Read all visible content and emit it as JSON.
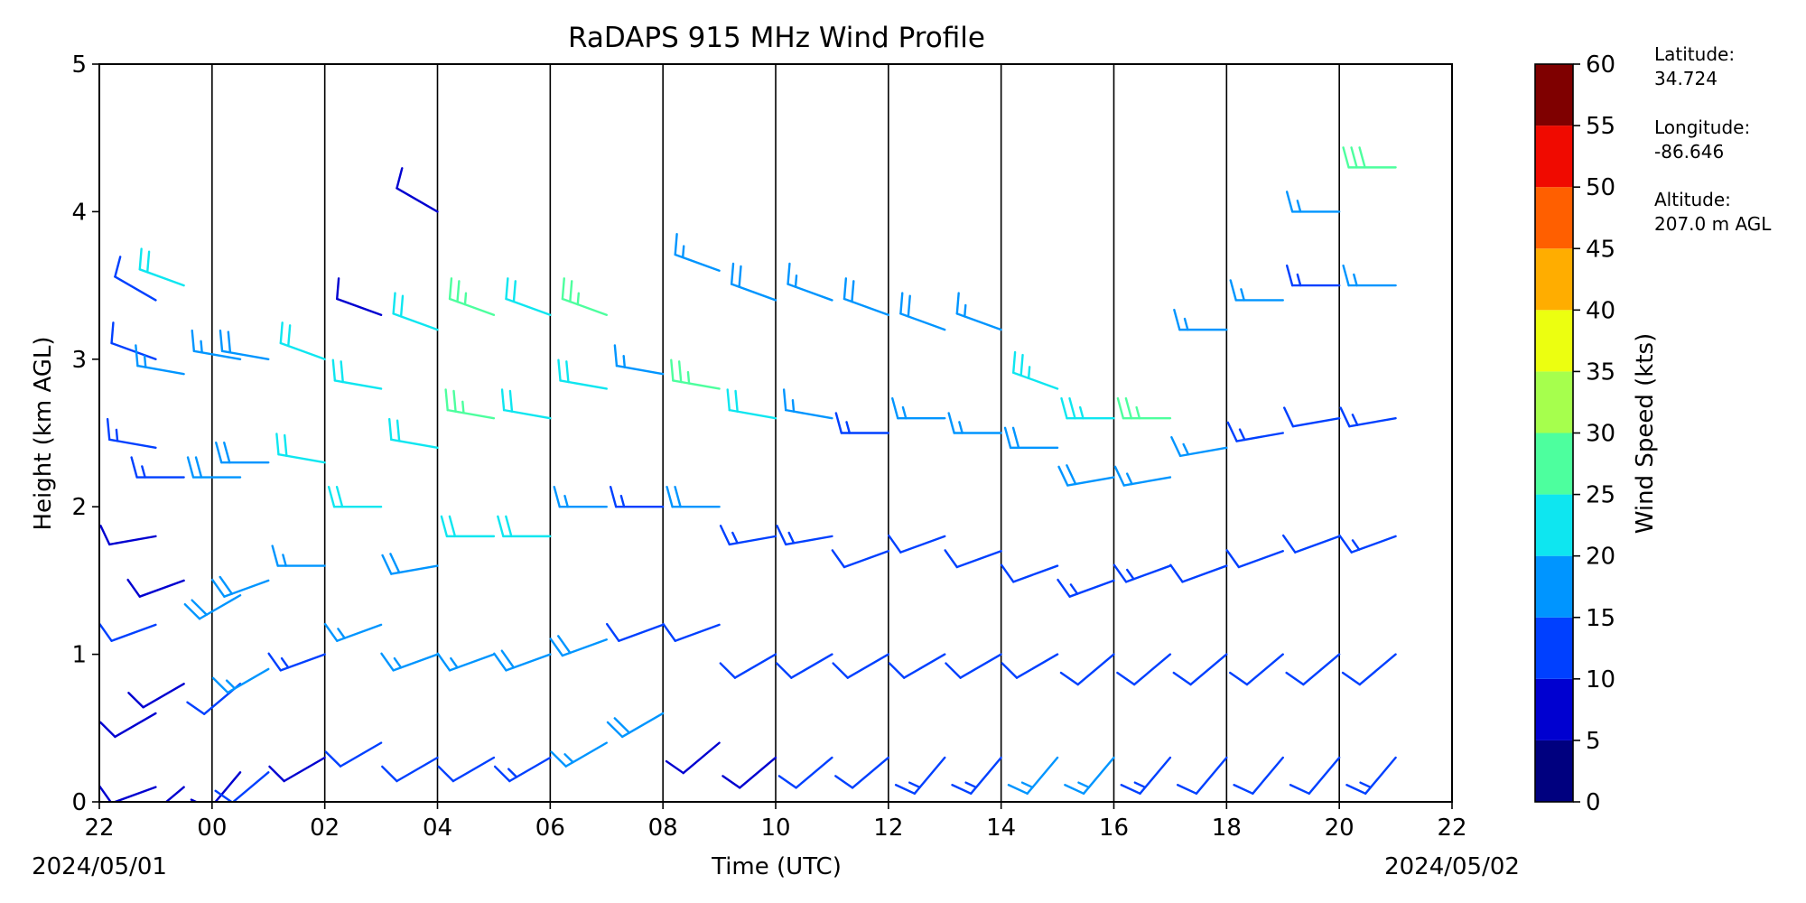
{
  "chart_data": {
    "type": "wind_barb_profile",
    "title": "RaDAPS 915 MHz Wind Profile",
    "xlabel": "Time (UTC)",
    "ylabel": "Height (km AGL)",
    "x_ticks": [
      "22",
      "00",
      "02",
      "04",
      "06",
      "08",
      "10",
      "12",
      "14",
      "16",
      "18",
      "20",
      "22"
    ],
    "y_ticks": [
      0,
      1,
      2,
      3,
      4,
      5
    ],
    "ylim": [
      0,
      5
    ],
    "date_start": "2024/05/01",
    "date_end": "2024/05/02",
    "colorbar": {
      "label": "Wind Speed (kts)",
      "ticks": [
        0,
        5,
        10,
        15,
        20,
        25,
        30,
        35,
        40,
        45,
        50,
        55,
        60
      ],
      "colors": [
        "#00007f",
        "#0000d0",
        "#0040ff",
        "#0095ff",
        "#0ee6f0",
        "#4dff9e",
        "#a6ff4d",
        "#ecff10",
        "#ffad00",
        "#ff5f00",
        "#f00a00",
        "#7f0000"
      ]
    },
    "site_info": [
      {
        "label": "Latitude:",
        "value": "34.724"
      },
      {
        "label": "Longitude:",
        "value": "-86.646"
      },
      {
        "label": "Altitude:",
        "value": "207.0 m AGL"
      }
    ],
    "profiles": [
      {
        "time": "23:00",
        "levels": [
          [
            0.1,
            8,
            250
          ],
          [
            0.6,
            9,
            240
          ],
          [
            1.2,
            10,
            250
          ],
          [
            1.8,
            9,
            260
          ],
          [
            2.4,
            14,
            280
          ],
          [
            3.0,
            12,
            290
          ],
          [
            3.4,
            10,
            300
          ]
        ]
      },
      {
        "time": "23:30",
        "levels": [
          [
            0.1,
            6,
            230
          ],
          [
            0.8,
            8,
            240
          ],
          [
            1.5,
            9,
            250
          ],
          [
            2.2,
            14,
            270
          ],
          [
            2.9,
            15,
            280
          ],
          [
            3.5,
            21,
            290
          ]
        ]
      },
      {
        "time": "00:30",
        "levels": [
          [
            0.2,
            8,
            220
          ],
          [
            0.8,
            12,
            230
          ],
          [
            1.4,
            18,
            240
          ],
          [
            2.2,
            18,
            270
          ],
          [
            3.0,
            17,
            280
          ]
        ]
      },
      {
        "time": "01:00",
        "levels": [
          [
            0.2,
            10,
            230
          ],
          [
            0.9,
            16,
            240
          ],
          [
            1.5,
            19,
            250
          ],
          [
            2.3,
            18,
            270
          ],
          [
            3.0,
            18,
            280
          ]
        ]
      },
      {
        "time": "02:00",
        "levels": [
          [
            0.3,
            9,
            240
          ],
          [
            1.0,
            14,
            250
          ],
          [
            1.6,
            16,
            270
          ],
          [
            2.3,
            22,
            280
          ],
          [
            3.0,
            20,
            290
          ]
        ]
      },
      {
        "time": "03:00",
        "levels": [
          [
            0.4,
            10,
            240
          ],
          [
            1.2,
            17,
            250
          ],
          [
            2.0,
            20,
            270
          ],
          [
            2.8,
            20,
            280
          ],
          [
            3.3,
            9,
            290
          ]
        ]
      },
      {
        "time": "04:00",
        "levels": [
          [
            0.3,
            11,
            240
          ],
          [
            1.0,
            15,
            250
          ],
          [
            1.6,
            18,
            260
          ],
          [
            2.4,
            22,
            280
          ],
          [
            3.2,
            21,
            290
          ],
          [
            4.0,
            9,
            300
          ]
        ]
      },
      {
        "time": "05:00",
        "levels": [
          [
            0.3,
            12,
            240
          ],
          [
            1.0,
            16,
            250
          ],
          [
            1.8,
            22,
            270
          ],
          [
            2.6,
            25,
            280
          ],
          [
            3.3,
            27,
            290
          ]
        ]
      },
      {
        "time": "06:00",
        "levels": [
          [
            0.3,
            14,
            240
          ],
          [
            1.0,
            18,
            250
          ],
          [
            1.8,
            20,
            270
          ],
          [
            2.6,
            22,
            280
          ],
          [
            3.3,
            22,
            290
          ]
        ]
      },
      {
        "time": "07:00",
        "levels": [
          [
            0.4,
            16,
            240
          ],
          [
            1.1,
            18,
            250
          ],
          [
            2.0,
            17,
            270
          ],
          [
            2.8,
            20,
            280
          ],
          [
            3.3,
            26,
            290
          ]
        ]
      },
      {
        "time": "08:00",
        "levels": [
          [
            0.6,
            18,
            240
          ],
          [
            1.2,
            12,
            250
          ],
          [
            2.0,
            14,
            270
          ],
          [
            2.9,
            16,
            280
          ]
        ]
      },
      {
        "time": "09:00",
        "levels": [
          [
            0.4,
            9,
            230
          ],
          [
            1.2,
            10,
            250
          ],
          [
            2.0,
            18,
            270
          ],
          [
            2.8,
            26,
            280
          ],
          [
            3.6,
            16,
            290
          ]
        ]
      },
      {
        "time": "10:00",
        "levels": [
          [
            0.3,
            9,
            230
          ],
          [
            1.0,
            10,
            240
          ],
          [
            1.8,
            14,
            260
          ],
          [
            2.6,
            20,
            280
          ],
          [
            3.4,
            18,
            290
          ]
        ]
      },
      {
        "time": "11:00",
        "levels": [
          [
            0.3,
            10,
            230
          ],
          [
            1.0,
            11,
            240
          ],
          [
            1.8,
            13,
            260
          ],
          [
            2.6,
            17,
            280
          ],
          [
            3.4,
            16,
            290
          ]
        ]
      },
      {
        "time": "12:00",
        "levels": [
          [
            0.3,
            11,
            230
          ],
          [
            1.0,
            12,
            240
          ],
          [
            1.7,
            10,
            250
          ],
          [
            2.5,
            14,
            270
          ],
          [
            3.3,
            19,
            290
          ]
        ]
      },
      {
        "time": "13:00",
        "levels": [
          [
            0.3,
            13,
            220
          ],
          [
            1.0,
            12,
            240
          ],
          [
            1.8,
            10,
            250
          ],
          [
            2.6,
            16,
            270
          ],
          [
            3.2,
            18,
            290
          ]
        ]
      },
      {
        "time": "14:00",
        "levels": [
          [
            0.3,
            14,
            220
          ],
          [
            1.0,
            12,
            240
          ],
          [
            1.7,
            11,
            250
          ],
          [
            2.5,
            15,
            270
          ],
          [
            3.2,
            17,
            290
          ]
        ]
      },
      {
        "time": "15:00",
        "levels": [
          [
            0.3,
            17,
            220
          ],
          [
            1.0,
            12,
            240
          ],
          [
            1.6,
            12,
            250
          ],
          [
            2.4,
            18,
            270
          ],
          [
            2.8,
            24,
            290
          ]
        ]
      },
      {
        "time": "16:00",
        "levels": [
          [
            0.3,
            16,
            220
          ],
          [
            1.0,
            12,
            230
          ],
          [
            1.5,
            14,
            250
          ],
          [
            2.2,
            18,
            260
          ],
          [
            2.6,
            24,
            270
          ]
        ]
      },
      {
        "time": "17:00",
        "levels": [
          [
            0.3,
            13,
            220
          ],
          [
            1.0,
            12,
            230
          ],
          [
            1.6,
            13,
            250
          ],
          [
            2.2,
            17,
            260
          ],
          [
            2.6,
            26,
            270
          ]
        ]
      },
      {
        "time": "18:00",
        "levels": [
          [
            0.3,
            12,
            220
          ],
          [
            1.0,
            11,
            230
          ],
          [
            1.6,
            12,
            250
          ],
          [
            2.4,
            15,
            260
          ],
          [
            3.2,
            17,
            270
          ]
        ]
      },
      {
        "time": "19:00",
        "levels": [
          [
            0.3,
            11,
            220
          ],
          [
            1.0,
            11,
            230
          ],
          [
            1.7,
            12,
            250
          ],
          [
            2.5,
            13,
            260
          ],
          [
            3.4,
            16,
            270
          ]
        ]
      },
      {
        "time": "20:00",
        "levels": [
          [
            0.3,
            12,
            220
          ],
          [
            1.0,
            11,
            230
          ],
          [
            1.8,
            12,
            250
          ],
          [
            2.6,
            12,
            260
          ],
          [
            3.5,
            14,
            270
          ],
          [
            4.0,
            16,
            270
          ]
        ]
      },
      {
        "time": "21:00",
        "levels": [
          [
            0.3,
            13,
            220
          ],
          [
            1.0,
            12,
            230
          ],
          [
            1.8,
            13,
            250
          ],
          [
            2.6,
            14,
            260
          ],
          [
            3.5,
            16,
            270
          ],
          [
            4.3,
            28,
            270
          ]
        ]
      }
    ]
  }
}
